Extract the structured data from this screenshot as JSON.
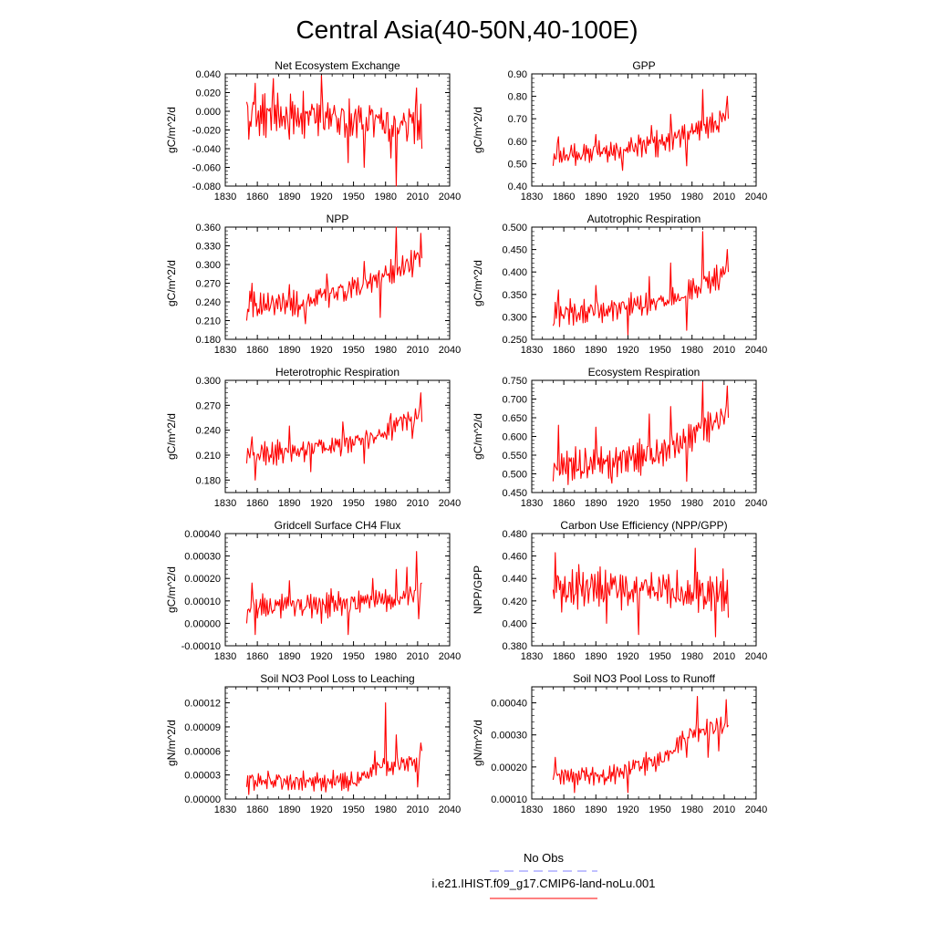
{
  "title": "Central Asia(40-50N,40-100E)",
  "legend": {
    "obs_label": "No Obs",
    "obs_color": "#8080ff",
    "case_label": "i.e21.IHIST.f09_g17.CMIP6-land-noLu.001",
    "case_color": "#ff0000"
  },
  "colors": {
    "series": "#ff0000",
    "axis": "#000000",
    "background": "#ffffff"
  },
  "chart_data": [
    {
      "type": "line",
      "title": "Net Ecosystem Exchange",
      "ylabel": "gC/m^2/d",
      "xlim": [
        1830,
        2040
      ],
      "ylim": [
        -0.08,
        0.04
      ],
      "xticks": [
        "1830",
        "1860",
        "1890",
        "1920",
        "1950",
        "1980",
        "2010",
        "2040"
      ],
      "yticks": [
        "0.040",
        "0.020",
        "0.000",
        "-0.020",
        "-0.040",
        "-0.060",
        "-0.080"
      ],
      "series": [
        {
          "x_start": 1850,
          "x_end": 2014,
          "anchors": [
            [
              1850,
              0.01
            ],
            [
              1852,
              -0.03
            ],
            [
              1858,
              0.03
            ],
            [
              1875,
              0.035
            ],
            [
              1890,
              -0.03
            ],
            [
              1920,
              0.038
            ],
            [
              1945,
              -0.055
            ],
            [
              1960,
              -0.06
            ],
            [
              1985,
              -0.05
            ],
            [
              1990,
              -0.08
            ],
            [
              2009,
              0.025
            ],
            [
              2014,
              -0.04
            ]
          ],
          "mean": [
            [
              1850,
              -0.005
            ],
            [
              1900,
              -0.005
            ],
            [
              1950,
              -0.01
            ],
            [
              2014,
              -0.015
            ]
          ],
          "amp": 0.022
        }
      ]
    },
    {
      "type": "line",
      "title": "GPP",
      "ylabel": "gC/m^2/d",
      "xlim": [
        1830,
        2040
      ],
      "ylim": [
        0.4,
        0.9
      ],
      "xticks": [
        "1830",
        "1860",
        "1890",
        "1920",
        "1950",
        "1980",
        "2010",
        "2040"
      ],
      "yticks": [
        "0.90",
        "0.80",
        "0.70",
        "0.60",
        "0.50",
        "0.40"
      ],
      "series": [
        {
          "x_start": 1850,
          "x_end": 2014,
          "anchors": [
            [
              1850,
              0.49
            ],
            [
              1855,
              0.62
            ],
            [
              1890,
              0.63
            ],
            [
              1915,
              0.47
            ],
            [
              1942,
              0.67
            ],
            [
              1960,
              0.72
            ],
            [
              1975,
              0.49
            ],
            [
              1990,
              0.83
            ],
            [
              2005,
              0.64
            ],
            [
              2013,
              0.8
            ],
            [
              2014,
              0.7
            ]
          ],
          "mean": [
            [
              1850,
              0.54
            ],
            [
              1900,
              0.555
            ],
            [
              1950,
              0.59
            ],
            [
              1975,
              0.63
            ],
            [
              2014,
              0.71
            ]
          ],
          "amp": 0.05
        }
      ]
    },
    {
      "type": "line",
      "title": "NPP",
      "ylabel": "gC/m^2/d",
      "xlim": [
        1830,
        2040
      ],
      "ylim": [
        0.18,
        0.36
      ],
      "xticks": [
        "1830",
        "1860",
        "1890",
        "1920",
        "1950",
        "1980",
        "2010",
        "2040"
      ],
      "yticks": [
        "0.360",
        "0.330",
        "0.300",
        "0.270",
        "0.240",
        "0.210",
        "0.180"
      ],
      "series": [
        {
          "x_start": 1850,
          "x_end": 2014,
          "anchors": [
            [
              1850,
              0.21
            ],
            [
              1855,
              0.27
            ],
            [
              1890,
              0.268
            ],
            [
              1905,
              0.205
            ],
            [
              1925,
              0.285
            ],
            [
              1960,
              0.305
            ],
            [
              1975,
              0.215
            ],
            [
              1990,
              0.36
            ],
            [
              2005,
              0.28
            ],
            [
              2013,
              0.35
            ],
            [
              2014,
              0.31
            ]
          ],
          "mean": [
            [
              1850,
              0.235
            ],
            [
              1900,
              0.238
            ],
            [
              1950,
              0.26
            ],
            [
              1975,
              0.28
            ],
            [
              2014,
              0.31
            ]
          ],
          "amp": 0.02
        }
      ]
    },
    {
      "type": "line",
      "title": "Autotrophic Respiration",
      "ylabel": "gC/m^2/d",
      "xlim": [
        1830,
        2040
      ],
      "ylim": [
        0.25,
        0.5
      ],
      "xticks": [
        "1830",
        "1860",
        "1890",
        "1920",
        "1950",
        "1980",
        "2010",
        "2040"
      ],
      "yticks": [
        "0.500",
        "0.450",
        "0.400",
        "0.350",
        "0.300",
        "0.250"
      ],
      "series": [
        {
          "x_start": 1850,
          "x_end": 2014,
          "anchors": [
            [
              1850,
              0.28
            ],
            [
              1855,
              0.36
            ],
            [
              1890,
              0.37
            ],
            [
              1920,
              0.26
            ],
            [
              1940,
              0.39
            ],
            [
              1960,
              0.42
            ],
            [
              1975,
              0.27
            ],
            [
              1990,
              0.49
            ],
            [
              2005,
              0.36
            ],
            [
              2013,
              0.45
            ],
            [
              2014,
              0.4
            ]
          ],
          "mean": [
            [
              1850,
              0.305
            ],
            [
              1900,
              0.315
            ],
            [
              1950,
              0.335
            ],
            [
              1975,
              0.355
            ],
            [
              2014,
              0.4
            ]
          ],
          "amp": 0.025
        }
      ]
    },
    {
      "type": "line",
      "title": "Heterotrophic Respiration",
      "ylabel": "gC/m^2/d",
      "xlim": [
        1830,
        2040
      ],
      "ylim": [
        0.165,
        0.3
      ],
      "xticks": [
        "1830",
        "1860",
        "1890",
        "1920",
        "1950",
        "1980",
        "2010",
        "2040"
      ],
      "yticks": [
        "0.300",
        "0.270",
        "0.240",
        "0.210",
        "0.180"
      ],
      "series": [
        {
          "x_start": 1850,
          "x_end": 2014,
          "anchors": [
            [
              1850,
              0.2
            ],
            [
              1855,
              0.232
            ],
            [
              1858,
              0.18
            ],
            [
              1890,
              0.245
            ],
            [
              1910,
              0.19
            ],
            [
              1940,
              0.25
            ],
            [
              1960,
              0.2
            ],
            [
              1985,
              0.26
            ],
            [
              1990,
              0.255
            ],
            [
              2005,
              0.23
            ],
            [
              2013,
              0.285
            ],
            [
              2014,
              0.25
            ]
          ],
          "mean": [
            [
              1850,
              0.21
            ],
            [
              1900,
              0.215
            ],
            [
              1950,
              0.225
            ],
            [
              1975,
              0.235
            ],
            [
              2014,
              0.26
            ]
          ],
          "amp": 0.013
        }
      ]
    },
    {
      "type": "line",
      "title": "Ecosystem Respiration",
      "ylabel": "gC/m^2/d",
      "xlim": [
        1830,
        2040
      ],
      "ylim": [
        0.45,
        0.75
      ],
      "xticks": [
        "1830",
        "1860",
        "1890",
        "1920",
        "1950",
        "1980",
        "2010",
        "2040"
      ],
      "yticks": [
        "0.750",
        "0.700",
        "0.650",
        "0.600",
        "0.550",
        "0.500",
        "0.450"
      ],
      "series": [
        {
          "x_start": 1850,
          "x_end": 2014,
          "anchors": [
            [
              1850,
              0.48
            ],
            [
              1855,
              0.63
            ],
            [
              1890,
              0.625
            ],
            [
              1905,
              0.475
            ],
            [
              1940,
              0.66
            ],
            [
              1960,
              0.68
            ],
            [
              1975,
              0.48
            ],
            [
              1990,
              0.745
            ],
            [
              2005,
              0.62
            ],
            [
              2013,
              0.735
            ],
            [
              2014,
              0.65
            ]
          ],
          "mean": [
            [
              1850,
              0.52
            ],
            [
              1900,
              0.53
            ],
            [
              1950,
              0.56
            ],
            [
              1975,
              0.59
            ],
            [
              2014,
              0.66
            ]
          ],
          "amp": 0.04
        }
      ]
    },
    {
      "type": "line",
      "title": "Gridcell Surface CH4 Flux",
      "ylabel": "gC/m^2/d",
      "xlim": [
        1830,
        2040
      ],
      "ylim": [
        -0.0001,
        0.0004
      ],
      "xticks": [
        "1830",
        "1860",
        "1890",
        "1920",
        "1950",
        "1980",
        "2010",
        "2040"
      ],
      "yticks": [
        "0.00040",
        "0.00030",
        "0.00020",
        "0.00010",
        "0.00000",
        "-0.00010"
      ],
      "series": [
        {
          "x_start": 1850,
          "x_end": 2014,
          "anchors": [
            [
              1850,
              0.0
            ],
            [
              1855,
              0.00018
            ],
            [
              1858,
              -5e-05
            ],
            [
              1890,
              0.00019
            ],
            [
              1920,
              0.0
            ],
            [
              1945,
              -5e-05
            ],
            [
              1968,
              0.0002
            ],
            [
              1990,
              0.00024
            ],
            [
              2000,
              0.00025
            ],
            [
              2009,
              0.00032
            ],
            [
              2011,
              2e-05
            ],
            [
              2014,
              0.00018
            ]
          ],
          "mean": [
            [
              1850,
              7e-05
            ],
            [
              1900,
              8e-05
            ],
            [
              1950,
              9e-05
            ],
            [
              1975,
              0.0001
            ],
            [
              2014,
              0.00013
            ]
          ],
          "amp": 5e-05
        }
      ]
    },
    {
      "type": "line",
      "title": "Carbon Use Efficiency (NPP/GPP)",
      "ylabel": "NPP/GPP",
      "xlim": [
        1830,
        2040
      ],
      "ylim": [
        0.38,
        0.48
      ],
      "xticks": [
        "1830",
        "1860",
        "1890",
        "1920",
        "1950",
        "1980",
        "2010",
        "2040"
      ],
      "yticks": [
        "0.480",
        "0.460",
        "0.440",
        "0.420",
        "0.400",
        "0.380"
      ],
      "series": [
        {
          "x_start": 1850,
          "x_end": 2014,
          "anchors": [
            [
              1850,
              0.43
            ],
            [
              1852,
              0.463
            ],
            [
              1858,
              0.41
            ],
            [
              1900,
              0.4
            ],
            [
              1930,
              0.39
            ],
            [
              1983,
              0.467
            ],
            [
              2002,
              0.388
            ],
            [
              2014,
              0.405
            ]
          ],
          "mean": [
            [
              1850,
              0.432
            ],
            [
              1950,
              0.43
            ],
            [
              2014,
              0.428
            ]
          ],
          "amp": 0.016
        }
      ]
    },
    {
      "type": "line",
      "title": "Soil NO3 Pool Loss to Leaching",
      "ylabel": "gN/m^2/d",
      "xlim": [
        1830,
        2040
      ],
      "ylim": [
        0,
        0.00014
      ],
      "xticks": [
        "1830",
        "1860",
        "1890",
        "1920",
        "1950",
        "1980",
        "2010",
        "2040"
      ],
      "yticks": [
        "0.00012",
        "0.00009",
        "0.00006",
        "0.00003",
        "0.00000"
      ],
      "series": [
        {
          "x_start": 1850,
          "x_end": 2014,
          "anchors": [
            [
              1850,
              1.5e-05
            ],
            [
              1855,
              3e-05
            ],
            [
              1870,
              3.5e-05
            ],
            [
              1945,
              1e-05
            ],
            [
              1970,
              6e-05
            ],
            [
              1980,
              0.00012
            ],
            [
              1990,
              8e-05
            ],
            [
              2010,
              1.5e-05
            ],
            [
              2013,
              7e-05
            ],
            [
              2014,
              6e-05
            ]
          ],
          "mean": [
            [
              1850,
              2e-05
            ],
            [
              1900,
              2.2e-05
            ],
            [
              1950,
              2.2e-05
            ],
            [
              1960,
              3e-05
            ],
            [
              1975,
              4e-05
            ],
            [
              2014,
              4.5e-05
            ]
          ],
          "amp": 1.2e-05
        }
      ]
    },
    {
      "type": "line",
      "title": "Soil NO3 Pool Loss to Runoff",
      "ylabel": "gN/m^2/d",
      "xlim": [
        1830,
        2040
      ],
      "ylim": [
        0.0001,
        0.00045
      ],
      "xticks": [
        "1830",
        "1860",
        "1890",
        "1920",
        "1950",
        "1980",
        "2010",
        "2040"
      ],
      "yticks": [
        "0.00040",
        "0.00030",
        "0.00020",
        "0.00010"
      ],
      "series": [
        {
          "x_start": 1850,
          "x_end": 2014,
          "anchors": [
            [
              1850,
              0.00016
            ],
            [
              1852,
              0.00023
            ],
            [
              1870,
              0.00012
            ],
            [
              1920,
              0.00012
            ],
            [
              1960,
              0.00025
            ],
            [
              1975,
              0.00023
            ],
            [
              1985,
              0.00042
            ],
            [
              1995,
              0.00023
            ],
            [
              2005,
              0.00025
            ],
            [
              2012,
              0.00041
            ],
            [
              2014,
              0.00033
            ]
          ],
          "mean": [
            [
              1850,
              0.00017
            ],
            [
              1900,
              0.000175
            ],
            [
              1950,
              0.00022
            ],
            [
              1975,
              0.0003
            ],
            [
              1990,
              0.00032
            ],
            [
              2014,
              0.00033
            ]
          ],
          "amp": 3e-05
        }
      ]
    }
  ]
}
